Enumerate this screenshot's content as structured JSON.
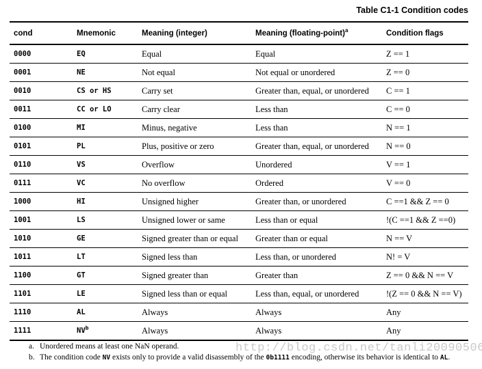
{
  "title": "Table C1-1 Condition codes",
  "table": {
    "headers": {
      "cond": "cond",
      "mnemonic": "Mnemonic",
      "meaning_int": "Meaning (integer)",
      "meaning_fp": "Meaning (floating-point)",
      "meaning_fp_sup": "a",
      "flags": "Condition flags"
    },
    "rows": [
      {
        "cond": "0000",
        "mnemonic": "EQ",
        "meaning_int": "Equal",
        "meaning_fp": "Equal",
        "flags": "Z == 1"
      },
      {
        "cond": "0001",
        "mnemonic": "NE",
        "meaning_int": "Not equal",
        "meaning_fp": "Not equal or unordered",
        "flags": "Z == 0"
      },
      {
        "cond": "0010",
        "mnemonic": "CS or HS",
        "meaning_int": "Carry set",
        "meaning_fp": "Greater than, equal, or unordered",
        "flags": "C == 1"
      },
      {
        "cond": "0011",
        "mnemonic": "CC or LO",
        "meaning_int": "Carry clear",
        "meaning_fp": "Less than",
        "flags": "C == 0"
      },
      {
        "cond": "0100",
        "mnemonic": "MI",
        "meaning_int": "Minus, negative",
        "meaning_fp": "Less than",
        "flags": "N == 1"
      },
      {
        "cond": "0101",
        "mnemonic": "PL",
        "meaning_int": "Plus, positive or zero",
        "meaning_fp": "Greater than, equal, or unordered",
        "flags": "N == 0"
      },
      {
        "cond": "0110",
        "mnemonic": "VS",
        "meaning_int": "Overflow",
        "meaning_fp": "Unordered",
        "flags": "V == 1"
      },
      {
        "cond": "0111",
        "mnemonic": "VC",
        "meaning_int": "No overflow",
        "meaning_fp": "Ordered",
        "flags": "V == 0"
      },
      {
        "cond": "1000",
        "mnemonic": "HI",
        "meaning_int": "Unsigned higher",
        "meaning_fp": "Greater than, or unordered",
        "flags": "C ==1 && Z == 0"
      },
      {
        "cond": "1001",
        "mnemonic": "LS",
        "meaning_int": "Unsigned lower or same",
        "meaning_fp": "Less than or equal",
        "flags": "!(C ==1 && Z ==0)"
      },
      {
        "cond": "1010",
        "mnemonic": "GE",
        "meaning_int": "Signed greater than or equal",
        "meaning_fp": "Greater than or equal",
        "flags": "N == V"
      },
      {
        "cond": "1011",
        "mnemonic": "LT",
        "meaning_int": "Signed less than",
        "meaning_fp": "Less than, or unordered",
        "flags": "N! = V"
      },
      {
        "cond": "1100",
        "mnemonic": "GT",
        "meaning_int": "Signed greater than",
        "meaning_fp": "Greater than",
        "flags": "Z == 0 && N == V"
      },
      {
        "cond": "1101",
        "mnemonic": "LE",
        "meaning_int": "Signed less than or equal",
        "meaning_fp": "Less than, equal, or unordered",
        "flags": "!(Z == 0 && N == V)"
      },
      {
        "cond": "1110",
        "mnemonic": "AL",
        "meaning_int": "Always",
        "meaning_fp": "Always",
        "flags": "Any"
      },
      {
        "cond": "1111",
        "mnemonic": "NV",
        "mnemonic_sup": "b",
        "meaning_int": "Always",
        "meaning_fp": "Always",
        "flags": "Any"
      }
    ]
  },
  "footnotes": [
    {
      "label": "a.",
      "parts": [
        {
          "mono": false,
          "text": "Unordered means at least one NaN operand."
        }
      ]
    },
    {
      "label": "b.",
      "parts": [
        {
          "mono": false,
          "text": "The condition code "
        },
        {
          "mono": true,
          "text": "NV"
        },
        {
          "mono": false,
          "text": " exists only to provide a valid disassembly of the "
        },
        {
          "mono": true,
          "text": "0b1111"
        },
        {
          "mono": false,
          "text": " encoding, otherwise its behavior is identical to "
        },
        {
          "mono": true,
          "text": "AL"
        },
        {
          "mono": false,
          "text": "."
        }
      ]
    }
  ],
  "watermark": "http://blog.csdn.net/tanli20090506",
  "colors": {
    "text": "#000000",
    "rule": "#000000",
    "watermark": "#c9c9c9"
  }
}
